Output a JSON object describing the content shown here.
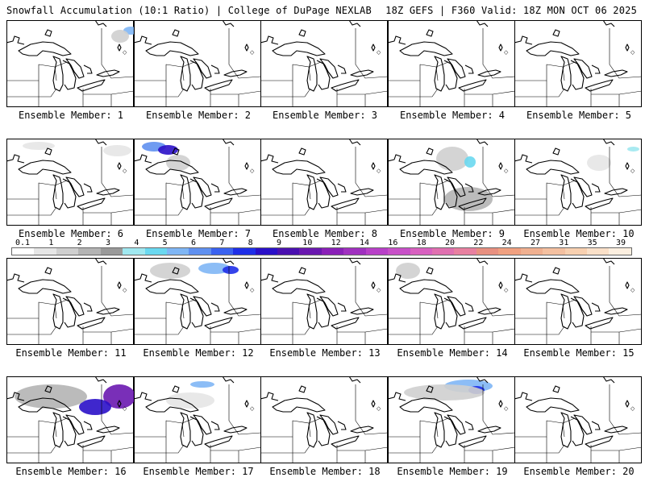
{
  "header": {
    "title_left": "Snowfall Accumulation (10:1 Ratio) | College of DuPage NEXLAB",
    "title_right": "18Z GEFS | F360 Valid: 18Z MON OCT 06 2025"
  },
  "panels": [
    {
      "label": "Ensemble Member: 1"
    },
    {
      "label": "Ensemble Member: 2"
    },
    {
      "label": "Ensemble Member: 3"
    },
    {
      "label": "Ensemble Member: 4"
    },
    {
      "label": "Ensemble Member: 5"
    },
    {
      "label": "Ensemble Member: 6"
    },
    {
      "label": "Ensemble Member: 7"
    },
    {
      "label": "Ensemble Member: 8"
    },
    {
      "label": "Ensemble Member: 9"
    },
    {
      "label": "Ensemble Member: 10"
    },
    {
      "label": "Ensemble Member: 11"
    },
    {
      "label": "Ensemble Member: 12"
    },
    {
      "label": "Ensemble Member: 13"
    },
    {
      "label": "Ensemble Member: 14"
    },
    {
      "label": "Ensemble Member: 15"
    },
    {
      "label": "Ensemble Member: 16"
    },
    {
      "label": "Ensemble Member: 17"
    },
    {
      "label": "Ensemble Member: 18"
    },
    {
      "label": "Ensemble Member: 19"
    },
    {
      "label": "Ensemble Member: 20"
    }
  ],
  "scale": {
    "labels": [
      "0.1",
      "1",
      "2",
      "3",
      "4",
      "5",
      "6",
      "7",
      "8",
      "9",
      "10",
      "12",
      "14",
      "16",
      "18",
      "20",
      "22",
      "24",
      "27",
      "31",
      "35",
      "39"
    ],
    "colors": [
      "#ffffff",
      "#e6e6e6",
      "#cfcfcf",
      "#b4b4b4",
      "#9a9a9a",
      "#a0e8f0",
      "#6ad8f0",
      "#7fb6f5",
      "#5f90f0",
      "#3a62f0",
      "#1f2fe8",
      "#2a10c8",
      "#4a10b0",
      "#6a18b0",
      "#8a20b8",
      "#a030c0",
      "#b840c8",
      "#c850c8",
      "#d860c0",
      "#e070b0",
      "#e880a0",
      "#e89080",
      "#f0a080",
      "#f0b090",
      "#f4c0a0",
      "#f8d0b0",
      "#fae0c8",
      "#fcefe0"
    ]
  }
}
